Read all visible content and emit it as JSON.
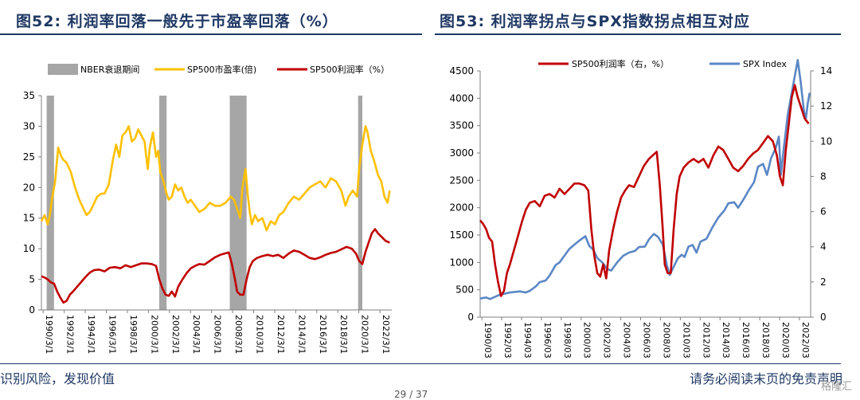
{
  "titles": {
    "left": "图52:  利润率回落一般先于市盈率回落（%）",
    "right": "图53:  利润率拐点与SPX指数拐点相互对应"
  },
  "footer": {
    "left": "识别风险，发现价值",
    "right": "请务必阅读末页的免责声明",
    "page": "29 / 37",
    "watermark": "格隆汇"
  },
  "colors": {
    "recession": "#a6a6a6",
    "pe": "#ffc000",
    "margin": "#c00000",
    "spx": "#5b87c5",
    "axis": "#7f7f7f"
  },
  "chart_data": [
    {
      "type": "line",
      "legend": {
        "position": "top",
        "items": [
          "NBER衰退期间",
          "SP500市盈率(倍)",
          "SP500利润率（%）"
        ]
      },
      "ylim": [
        0,
        35
      ],
      "yticks": [
        0,
        5,
        10,
        15,
        20,
        25,
        30,
        35
      ],
      "xlim": [
        1990.0,
        2023.3
      ],
      "xticks": [
        "1990/3/1",
        "1992/3/1",
        "1994/3/1",
        "1996/3/1",
        "1998/3/1",
        "2000/3/1",
        "2002/3/1",
        "2004/3/1",
        "2006/3/1",
        "2008/3/1",
        "2010/3/1",
        "2012/3/1",
        "2014/3/1",
        "2016/3/1",
        "2018/3/1",
        "2020/3/1",
        "2022/3/1"
      ],
      "recessions": [
        [
          1990.5,
          1991.2
        ],
        [
          2001.2,
          2001.9
        ],
        [
          2007.9,
          2009.5
        ],
        [
          2020.1,
          2020.5
        ]
      ],
      "series": [
        {
          "name": "SP500市盈率(倍)",
          "x": [
            1990.0,
            1990.3,
            1990.6,
            1990.8,
            1991.0,
            1991.3,
            1991.6,
            1991.9,
            1992.1,
            1992.4,
            1992.8,
            1993.2,
            1993.6,
            1994.0,
            1994.3,
            1994.6,
            1994.9,
            1995.3,
            1995.7,
            1996.0,
            1996.4,
            1996.8,
            1997.1,
            1997.4,
            1997.7,
            1998.0,
            1998.3,
            1998.6,
            1998.9,
            1999.2,
            1999.5,
            1999.8,
            2000.1,
            2000.3,
            2000.6,
            2000.9,
            2001.1,
            2001.3,
            2001.6,
            2001.9,
            2002.1,
            2002.4,
            2002.7,
            2003.0,
            2003.3,
            2003.6,
            2003.9,
            2004.2,
            2004.6,
            2005.0,
            2005.5,
            2006.0,
            2006.5,
            2007.0,
            2007.5,
            2008.0,
            2008.3,
            2008.6,
            2008.9,
            2009.1,
            2009.4,
            2009.6,
            2009.8,
            2010.0,
            2010.3,
            2010.6,
            2011.0,
            2011.4,
            2011.8,
            2012.2,
            2012.6,
            2013.0,
            2013.5,
            2014.0,
            2014.5,
            2015.0,
            2015.5,
            2016.0,
            2016.5,
            2017.0,
            2017.5,
            2018.0,
            2018.5,
            2018.9,
            2019.2,
            2019.6,
            2020.0,
            2020.2,
            2020.5,
            2020.8,
            2021.0,
            2021.3,
            2021.6,
            2022.0,
            2022.3,
            2022.6,
            2022.9,
            2023.1
          ],
          "values": [
            14.5,
            15.5,
            14.0,
            15.5,
            18.0,
            21.0,
            26.5,
            25.0,
            24.5,
            24.0,
            22.5,
            20.0,
            18.0,
            16.5,
            15.5,
            16.0,
            17.0,
            18.5,
            19.0,
            19.0,
            20.5,
            24.5,
            27.0,
            25.0,
            28.5,
            29.0,
            30.0,
            27.5,
            28.0,
            29.5,
            28.5,
            27.5,
            23.0,
            26.5,
            29.0,
            25.0,
            26.0,
            22.5,
            21.0,
            19.0,
            18.0,
            18.5,
            20.5,
            19.5,
            20.0,
            18.5,
            17.5,
            18.0,
            17.0,
            16.0,
            16.5,
            17.5,
            17.0,
            17.0,
            17.5,
            18.5,
            18.0,
            16.5,
            15.0,
            20.0,
            23.0,
            19.0,
            16.0,
            14.0,
            15.5,
            14.5,
            15.0,
            13.0,
            14.5,
            14.0,
            15.5,
            16.0,
            17.5,
            18.5,
            18.0,
            19.0,
            20.0,
            20.5,
            21.0,
            20.0,
            21.5,
            21.0,
            19.5,
            17.0,
            18.5,
            19.5,
            18.5,
            23.0,
            27.0,
            30.0,
            29.0,
            26.0,
            24.5,
            22.0,
            21.0,
            18.5,
            17.5,
            19.5
          ]
        },
        {
          "name": "SP500利润率（%）",
          "x": [
            1990.0,
            1990.3,
            1990.6,
            1990.9,
            1991.2,
            1991.5,
            1991.8,
            1992.1,
            1992.4,
            1992.7,
            1993.0,
            1993.4,
            1993.8,
            1994.2,
            1994.6,
            1995.0,
            1995.5,
            1996.0,
            1996.5,
            1997.0,
            1997.5,
            1998.0,
            1998.5,
            1999.0,
            1999.5,
            2000.0,
            2000.5,
            2000.9,
            2001.2,
            2001.5,
            2001.8,
            2002.1,
            2002.4,
            2002.7,
            2003.0,
            2003.4,
            2003.8,
            2004.2,
            2004.6,
            2005.0,
            2005.5,
            2006.0,
            2006.5,
            2007.0,
            2007.4,
            2007.8,
            2008.1,
            2008.4,
            2008.6,
            2008.9,
            2009.2,
            2009.5,
            2009.8,
            2010.1,
            2010.5,
            2011.0,
            2011.5,
            2012.0,
            2012.5,
            2013.0,
            2013.5,
            2014.0,
            2014.5,
            2015.0,
            2015.5,
            2016.0,
            2016.5,
            2017.0,
            2017.5,
            2018.0,
            2018.5,
            2019.0,
            2019.5,
            2019.9,
            2020.2,
            2020.5,
            2020.8,
            2021.1,
            2021.4,
            2021.7,
            2022.0,
            2022.3,
            2022.7,
            2023.1
          ],
          "values": [
            5.5,
            5.3,
            5.0,
            4.5,
            4.3,
            3.0,
            2.0,
            1.2,
            1.5,
            2.5,
            3.0,
            3.8,
            4.6,
            5.4,
            6.1,
            6.5,
            6.6,
            6.3,
            6.9,
            7.0,
            6.8,
            7.3,
            7.0,
            7.3,
            7.6,
            7.6,
            7.5,
            7.2,
            5.0,
            3.5,
            2.5,
            2.3,
            3.0,
            2.2,
            3.8,
            5.0,
            6.0,
            6.8,
            7.2,
            7.5,
            7.4,
            8.0,
            8.6,
            9.0,
            9.2,
            9.4,
            7.5,
            5.0,
            3.0,
            2.5,
            2.5,
            5.0,
            7.0,
            8.0,
            8.5,
            8.8,
            9.0,
            8.8,
            9.0,
            8.5,
            9.2,
            9.7,
            9.5,
            9.0,
            8.5,
            8.3,
            8.6,
            9.0,
            9.3,
            9.5,
            9.9,
            10.3,
            10.0,
            9.2,
            8.0,
            7.5,
            9.5,
            11.0,
            12.5,
            13.2,
            12.5,
            12.0,
            11.3,
            11.0
          ]
        }
      ]
    },
    {
      "type": "line",
      "legend": {
        "position": "top",
        "items": [
          "SP500利润率（右，%）",
          "SPX Index"
        ]
      },
      "ylim": [
        0,
        4500
      ],
      "yticks": [
        0,
        500,
        1000,
        1500,
        2000,
        2500,
        3000,
        3500,
        4000,
        4500
      ],
      "y2lim": [
        0,
        14
      ],
      "y2ticks": [
        0,
        2,
        4,
        6,
        8,
        10,
        12,
        14
      ],
      "xlim": [
        1990.0,
        2023.3
      ],
      "xticks": [
        "1990/03",
        "1992/03",
        "1994/03",
        "1996/03",
        "1998/03",
        "2000/03",
        "2002/03",
        "2004/03",
        "2006/03",
        "2008/03",
        "2010/03",
        "2012/03",
        "2014/03",
        "2016/03",
        "2018/03",
        "2020/03",
        "2022/03"
      ],
      "series": [
        {
          "name": "SPX Index",
          "axis": "left",
          "x": [
            1990.0,
            1990.6,
            1991.0,
            1991.6,
            1992.0,
            1993.0,
            1994.0,
            1994.6,
            1995.0,
            1995.6,
            1996.0,
            1996.6,
            1997.0,
            1997.6,
            1998.0,
            1998.6,
            1999.0,
            1999.6,
            2000.0,
            2000.6,
            2001.0,
            2001.4,
            2001.8,
            2002.3,
            2002.8,
            2003.2,
            2003.8,
            2004.4,
            2005.0,
            2005.6,
            2006.0,
            2006.6,
            2007.0,
            2007.5,
            2007.9,
            2008.4,
            2008.8,
            2009.1,
            2009.5,
            2009.9,
            2010.3,
            2010.6,
            2011.0,
            2011.4,
            2011.8,
            2012.2,
            2012.8,
            2013.4,
            2014.0,
            2014.6,
            2015.0,
            2015.6,
            2016.0,
            2016.6,
            2017.0,
            2017.6,
            2018.0,
            2018.5,
            2018.9,
            2019.3,
            2019.8,
            2020.1,
            2020.3,
            2020.6,
            2021.0,
            2021.4,
            2021.8,
            2022.0,
            2022.3,
            2022.6,
            2022.8,
            2023.0,
            2023.2
          ],
          "values": [
            340,
            360,
            330,
            380,
            410,
            450,
            470,
            450,
            480,
            560,
            640,
            670,
            760,
            950,
            1000,
            1150,
            1250,
            1340,
            1400,
            1480,
            1300,
            1230,
            1080,
            1000,
            880,
            850,
            1000,
            1120,
            1180,
            1210,
            1280,
            1290,
            1420,
            1520,
            1470,
            1330,
            960,
            770,
            920,
            1070,
            1140,
            1100,
            1290,
            1320,
            1180,
            1380,
            1430,
            1640,
            1820,
            1950,
            2080,
            2100,
            2000,
            2170,
            2300,
            2470,
            2750,
            2800,
            2600,
            2900,
            3100,
            3300,
            2600,
            3100,
            3700,
            4100,
            4500,
            4700,
            4300,
            3800,
            3600,
            3900,
            4100
          ]
        },
        {
          "name": "SP500利润率（右，%）",
          "axis": "right",
          "x": [
            1990.0,
            1990.3,
            1990.6,
            1990.9,
            1991.2,
            1991.5,
            1991.8,
            1992.1,
            1992.4,
            1992.7,
            1993.0,
            1993.4,
            1993.8,
            1994.2,
            1994.6,
            1995.0,
            1995.5,
            1996.0,
            1996.5,
            1997.0,
            1997.5,
            1998.0,
            1998.5,
            1999.0,
            1999.5,
            2000.0,
            2000.5,
            2000.9,
            2001.2,
            2001.5,
            2001.8,
            2002.1,
            2002.4,
            2002.7,
            2003.0,
            2003.4,
            2003.8,
            2004.2,
            2004.6,
            2005.0,
            2005.5,
            2006.0,
            2006.5,
            2007.0,
            2007.4,
            2007.8,
            2008.1,
            2008.4,
            2008.6,
            2008.9,
            2009.2,
            2009.5,
            2009.8,
            2010.1,
            2010.5,
            2011.0,
            2011.5,
            2012.0,
            2012.5,
            2013.0,
            2013.5,
            2014.0,
            2014.5,
            2015.0,
            2015.5,
            2016.0,
            2016.5,
            2017.0,
            2017.5,
            2018.0,
            2018.5,
            2019.0,
            2019.5,
            2019.9,
            2020.2,
            2020.5,
            2020.8,
            2021.1,
            2021.4,
            2021.7,
            2022.0,
            2022.3,
            2022.7,
            2023.1
          ],
          "values": [
            5.5,
            5.3,
            5.0,
            4.5,
            4.3,
            3.0,
            2.0,
            1.2,
            1.5,
            2.5,
            3.0,
            3.8,
            4.6,
            5.4,
            6.1,
            6.5,
            6.6,
            6.3,
            6.9,
            7.0,
            6.8,
            7.3,
            7.0,
            7.3,
            7.6,
            7.6,
            7.5,
            7.2,
            5.0,
            3.5,
            2.5,
            2.3,
            3.0,
            2.2,
            3.8,
            5.0,
            6.0,
            6.8,
            7.2,
            7.5,
            7.4,
            8.0,
            8.6,
            9.0,
            9.2,
            9.4,
            7.5,
            5.0,
            3.0,
            2.5,
            2.5,
            5.0,
            7.0,
            8.0,
            8.5,
            8.8,
            9.0,
            8.8,
            9.0,
            8.5,
            9.2,
            9.7,
            9.5,
            9.0,
            8.5,
            8.3,
            8.6,
            9.0,
            9.3,
            9.5,
            9.9,
            10.3,
            10.0,
            9.2,
            8.0,
            7.5,
            9.5,
            11.0,
            12.5,
            13.2,
            12.5,
            12.0,
            11.3,
            11.0
          ]
        }
      ]
    }
  ]
}
